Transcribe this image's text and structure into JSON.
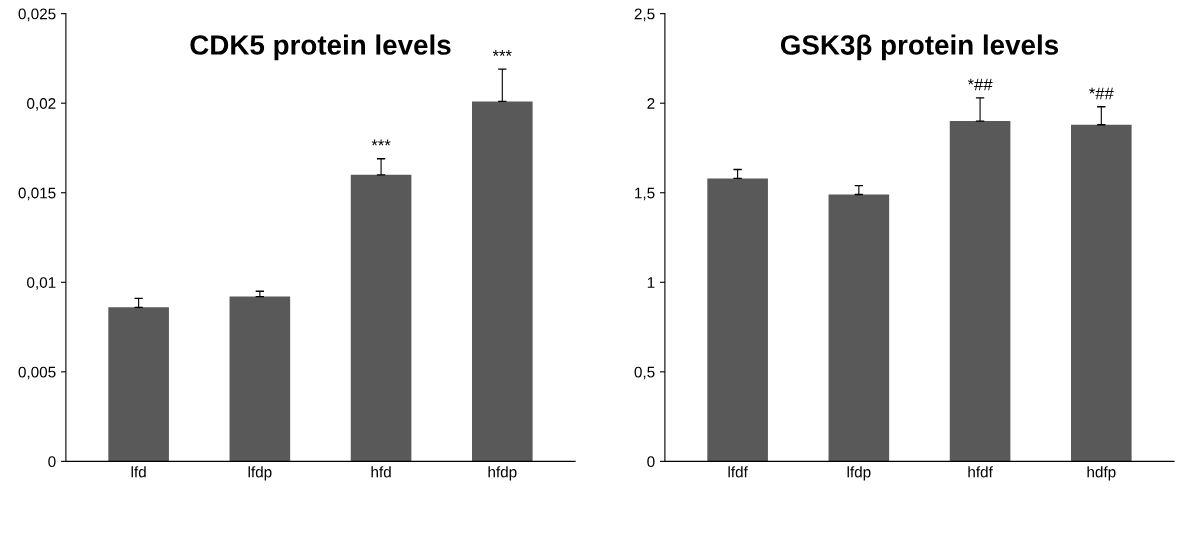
{
  "chart_data": [
    {
      "type": "bar",
      "title": "CDK5 protein levels",
      "categories": [
        "lfd",
        "lfdp",
        "hfd",
        "hfdp"
      ],
      "values": [
        0.0086,
        0.0092,
        0.016,
        0.0201
      ],
      "errors": [
        0.0005,
        0.0003,
        0.0009,
        0.0018
      ],
      "color": "#595959",
      "ylim": [
        0,
        0.025
      ],
      "yticks": [
        0,
        {
          "value": 0.005,
          "label": "0,005"
        },
        {
          "value": 0.01,
          "label": "0,01"
        },
        {
          "value": 0.015,
          "label": "0,015"
        },
        {
          "value": 0.02,
          "label": "0,02"
        },
        {
          "value": 0.025,
          "label": "0,025"
        }
      ],
      "grid": false,
      "legend": false,
      "annotations": [
        {
          "text": "***",
          "x": "hfd",
          "y": 0.0169
        },
        {
          "text": "***",
          "x": "hfdp",
          "y": 0.0219
        }
      ]
    },
    {
      "type": "bar",
      "title": "GSK3β protein levels",
      "categories": [
        "lfdf",
        "lfdp",
        "hfdf",
        "hdfp"
      ],
      "values": [
        1.58,
        1.49,
        1.9,
        1.88
      ],
      "errors": [
        0.05,
        0.05,
        0.13,
        0.1
      ],
      "color": "#595959",
      "ylim": [
        0,
        2.5
      ],
      "yticks": [
        0,
        {
          "value": 0.5,
          "label": "0,5"
        },
        1,
        {
          "value": 1.5,
          "label": "1,5"
        },
        2,
        {
          "value": 2.5,
          "label": "2,5"
        }
      ],
      "grid": false,
      "legend": false,
      "annotations": [
        {
          "text": "*##",
          "x": "hfdf",
          "y": 2.03
        },
        {
          "text": "*##",
          "x": "hdfp",
          "y": 1.98
        }
      ]
    }
  ]
}
